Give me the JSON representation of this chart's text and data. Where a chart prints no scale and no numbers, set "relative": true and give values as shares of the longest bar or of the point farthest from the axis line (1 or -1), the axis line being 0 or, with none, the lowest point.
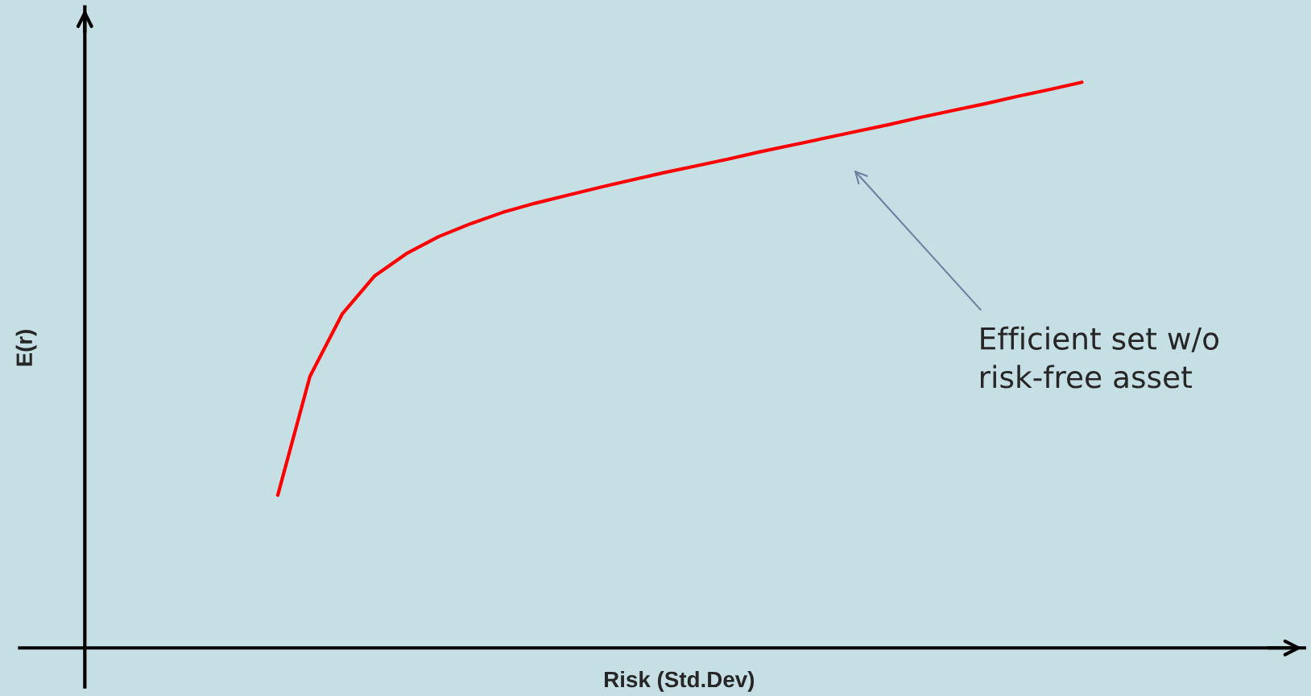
{
  "chart_data": {
    "type": "line",
    "relative": true,
    "xlabel": "Risk (Std.Dev)",
    "ylabel": "E(r)",
    "categories": [
      null,
      null,
      null,
      null,
      null,
      null,
      null,
      null,
      null,
      null,
      null,
      null,
      null,
      null,
      null,
      null,
      null,
      null,
      null,
      null,
      null,
      null,
      null,
      null,
      null,
      null,
      null,
      null,
      null,
      null,
      null,
      null,
      null,
      null,
      null,
      null,
      null,
      null
    ],
    "series": [
      {
        "color": "#ff0000",
        "values": [
          null,
          null,
          null,
          null,
          null,
          null,
          0.27,
          0.48,
          0.59,
          0.657,
          0.697,
          0.727,
          0.75,
          0.77,
          0.786,
          0.8,
          0.814,
          0.827,
          0.84,
          0.852,
          0.864,
          0.877,
          0.889,
          0.901,
          0.913,
          0.925,
          0.938,
          0.95,
          0.962,
          0.975,
          0.987,
          1.0,
          null,
          null,
          null,
          null,
          null,
          null
        ]
      }
    ],
    "annotations": [
      "Efficient set w/o\nrisk-free asset"
    ]
  }
}
